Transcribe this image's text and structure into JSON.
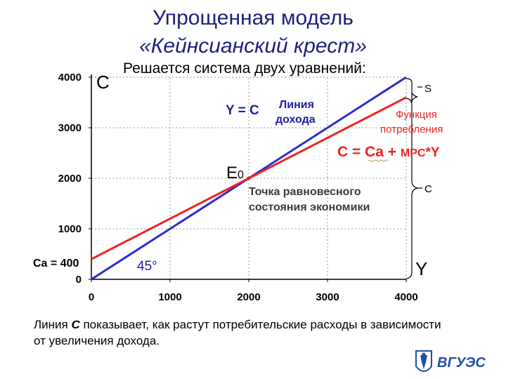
{
  "title": {
    "line1": "Упрощенная модель",
    "line2": "«Кейнсианский крест»"
  },
  "subtitle": "Решается система двух уравнений:",
  "annotations": {
    "y_axis_label": "C",
    "x_axis_label": "Y",
    "equation_income": "Y = C",
    "income_line_label": [
      "Линия",
      "дохода"
    ],
    "consumption_label": [
      "Функция",
      "потребления"
    ],
    "consumption_equation": {
      "lhs": "C = Ca + ",
      "mpc": "MPC",
      "rhs": "*Y"
    },
    "equilibrium_point": "E",
    "equilibrium_subscript": "0",
    "equilibrium_desc": [
      "Точка равновесного",
      "состояния экономики"
    ],
    "angle": "45°",
    "intercept": "Ca = 400",
    "bracket_s": "S",
    "bracket_c": "C"
  },
  "footer": {
    "pre": "Линия ",
    "emph": "C",
    "post": " показывает, как растут потребительские расходы в зависимости от увеличения дохода."
  },
  "logo": {
    "text": "ВГУЭС"
  },
  "colors": {
    "income_line": "#2b2bd0",
    "consumption_line": "#ee2222",
    "title": "#1f1f7a",
    "highlight": "#ee2222"
  },
  "chart_data": {
    "type": "line",
    "xlim": [
      0,
      4000
    ],
    "ylim": [
      0,
      4000
    ],
    "x_ticks": [
      0,
      1000,
      2000,
      3000,
      4000
    ],
    "y_ticks": [
      0,
      1000,
      2000,
      3000,
      4000
    ],
    "grid": true,
    "series": [
      {
        "role": "income",
        "x": [
          0,
          4000
        ],
        "y": [
          0,
          4000
        ]
      },
      {
        "role": "consumption",
        "x": [
          0,
          4000
        ],
        "y": [
          400,
          3600
        ]
      }
    ],
    "equilibrium": {
      "x": 2000,
      "y": 2000
    }
  }
}
